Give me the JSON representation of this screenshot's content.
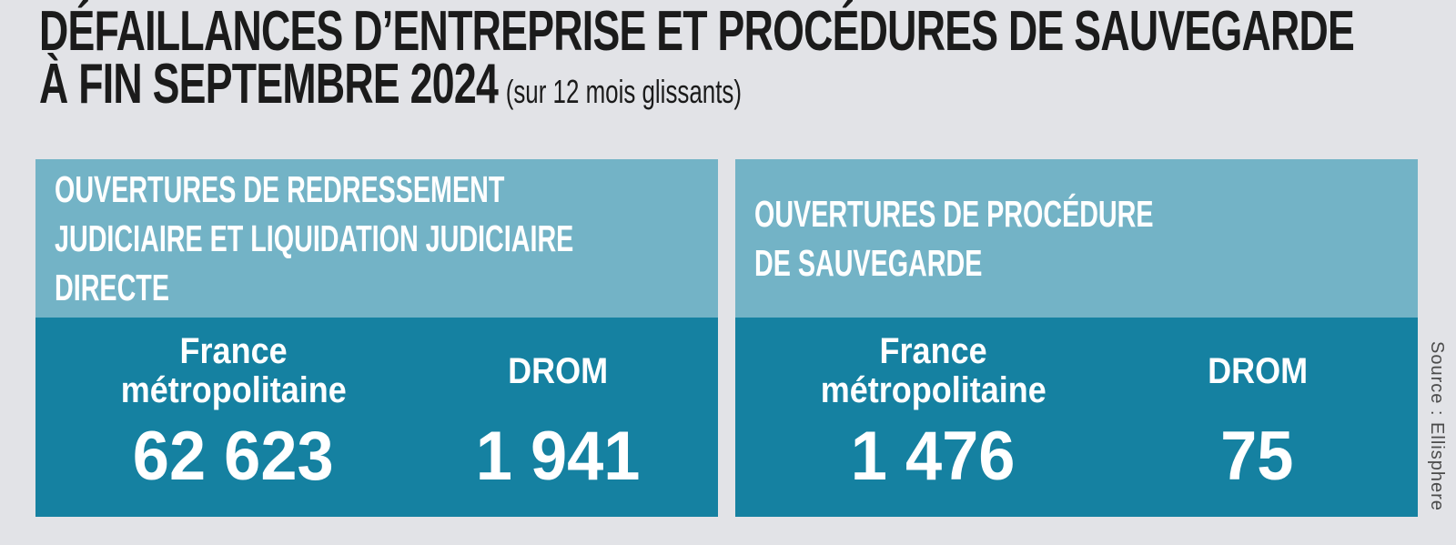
{
  "title": {
    "line1": "DÉFAILLANCES D’ENTREPRISE ET PROCÉDURES DE SAUVEGARDE",
    "line2_bold": "À FIN SEPTEMBRE 2024",
    "line2_note": "(sur 12 mois glissants)"
  },
  "panels": [
    {
      "title": "OUVERTURES DE REDRESSEMENT JUDICIAIRE ET LIQUIDATION JUDICIAIRE DIRECTE",
      "title_lines": [
        "OUVERTURES DE REDRESSEMENT",
        "JUDICIAIRE ET LIQUIDATION JUDICIAIRE",
        "DIRECTE"
      ],
      "columns": [
        {
          "label_lines": [
            "France",
            "métropolitaine"
          ],
          "value": "62 623"
        },
        {
          "label_lines": [
            "DROM"
          ],
          "value": "1 941"
        }
      ]
    },
    {
      "title": "OUVERTURES DE PROCÉDURE DE SAUVEGARDE",
      "title_lines": [
        "OUVERTURES DE PROCÉDURE",
        "DE SAUVEGARDE"
      ],
      "columns": [
        {
          "label_lines": [
            "France",
            "métropolitaine"
          ],
          "value": "1 476"
        },
        {
          "label_lines": [
            "DROM"
          ],
          "value": "75"
        }
      ]
    }
  ],
  "source": {
    "label": "Source : Ellisphere"
  },
  "colors": {
    "background": "#e2e3e7",
    "panel_header_blue": "#73b3c6",
    "panel_value_teal": "#1581a1",
    "text_white": "#ffffff",
    "title_black": "#1b1b1b",
    "source_gray": "#4b4b4b"
  },
  "chart_data": {
    "type": "table",
    "title": "DÉFAILLANCES D’ENTREPRISE ET PROCÉDURES DE SAUVEGARDE À FIN SEPTEMBRE 2024 (sur 12 mois glissants)",
    "series": [
      {
        "name": "Ouvertures de redressement judiciaire et liquidation judiciaire directe",
        "categories": [
          "France métropolitaine",
          "DROM"
        ],
        "values": [
          62623,
          1941
        ]
      },
      {
        "name": "Ouvertures de procédure de sauvegarde",
        "categories": [
          "France métropolitaine",
          "DROM"
        ],
        "values": [
          1476,
          75
        ]
      }
    ],
    "source": "Ellisphere"
  }
}
